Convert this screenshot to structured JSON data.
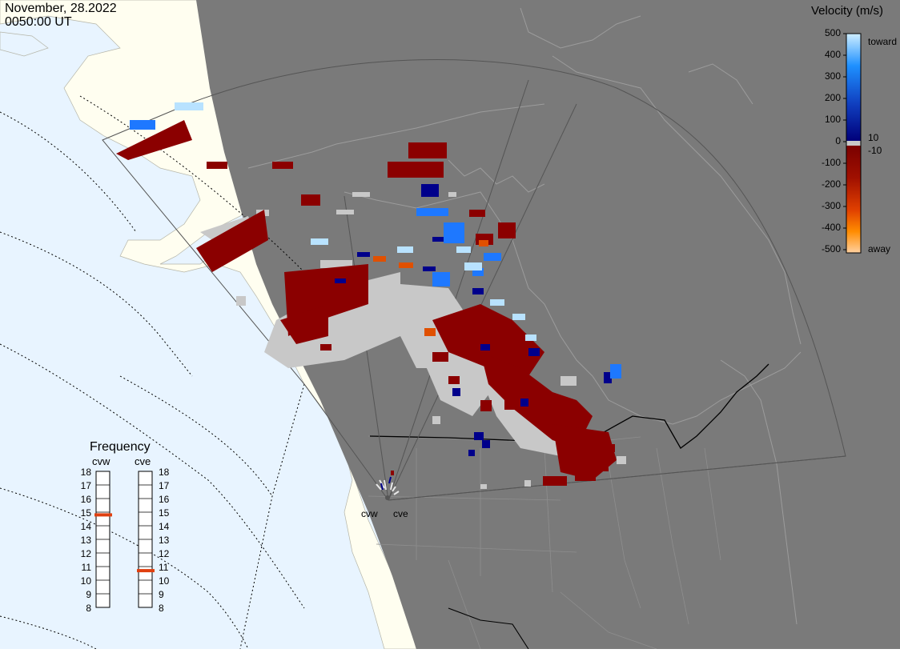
{
  "header": {
    "date": "November, 28.2022",
    "time": "0050:00 UT"
  },
  "colorbar": {
    "title": "Velocity (m/s)",
    "ticks": [
      "500",
      "400",
      "300",
      "200",
      "100",
      "0",
      "-100",
      "-200",
      "-300",
      "-400",
      "-500"
    ],
    "toward_label": "toward",
    "away_label": "away",
    "pos_threshold": "10",
    "neg_threshold": "-10",
    "colors": {
      "toward_high": "#cfeeff",
      "toward_mid": "#1e90ff",
      "toward_low": "#00007a",
      "away_low": "#7a0000",
      "away_mid": "#e04000",
      "away_high": "#ffd0a0",
      "ground_scatter": "#c8c8c8"
    }
  },
  "frequency_panel": {
    "title": "Frequency",
    "radars": [
      {
        "name": "cvw",
        "frequency_mhz": 14.8
      },
      {
        "name": "cve",
        "frequency_mhz": 10.7
      }
    ],
    "scale": [
      "18",
      "17",
      "16",
      "15",
      "14",
      "13",
      "12",
      "11",
      "10",
      "9",
      "8"
    ]
  },
  "sites": [
    {
      "name": "cvw"
    },
    {
      "name": "cve"
    }
  ],
  "map_colors": {
    "ocean": "#e8f4ff",
    "land": "#fffef0",
    "night": "#7a7a7a",
    "coast": "#9a9a9a",
    "border": "#000000"
  }
}
